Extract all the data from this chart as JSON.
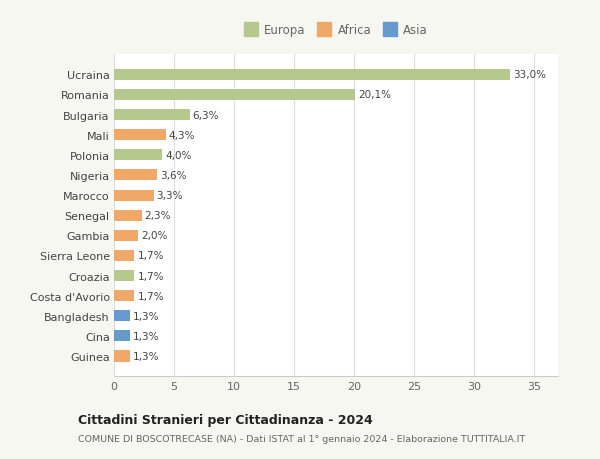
{
  "countries": [
    "Ucraina",
    "Romania",
    "Bulgaria",
    "Mali",
    "Polonia",
    "Nigeria",
    "Marocco",
    "Senegal",
    "Gambia",
    "Sierra Leone",
    "Croazia",
    "Costa d'Avorio",
    "Bangladesh",
    "Cina",
    "Guinea"
  ],
  "values": [
    33.0,
    20.1,
    6.3,
    4.3,
    4.0,
    3.6,
    3.3,
    2.3,
    2.0,
    1.7,
    1.7,
    1.7,
    1.3,
    1.3,
    1.3
  ],
  "labels": [
    "33,0%",
    "20,1%",
    "6,3%",
    "4,3%",
    "4,0%",
    "3,6%",
    "3,3%",
    "2,3%",
    "2,0%",
    "1,7%",
    "1,7%",
    "1,7%",
    "1,3%",
    "1,3%",
    "1,3%"
  ],
  "continents": [
    "Europa",
    "Europa",
    "Europa",
    "Africa",
    "Europa",
    "Africa",
    "Africa",
    "Africa",
    "Africa",
    "Africa",
    "Europa",
    "Africa",
    "Asia",
    "Asia",
    "Africa"
  ],
  "colors": {
    "Europa": "#b5c98e",
    "Africa": "#f0a868",
    "Asia": "#6699cc"
  },
  "background_color": "#f7f7f2",
  "plot_bg_color": "#ffffff",
  "grid_color": "#dddddd",
  "title": "Cittadini Stranieri per Cittadinanza - 2024",
  "subtitle": "COMUNE DI BOSCOTRECASE (NA) - Dati ISTAT al 1° gennaio 2024 - Elaborazione TUTTITALIA.IT",
  "xlim": [
    0,
    37
  ],
  "xticks": [
    0,
    5,
    10,
    15,
    20,
    25,
    30,
    35
  ]
}
